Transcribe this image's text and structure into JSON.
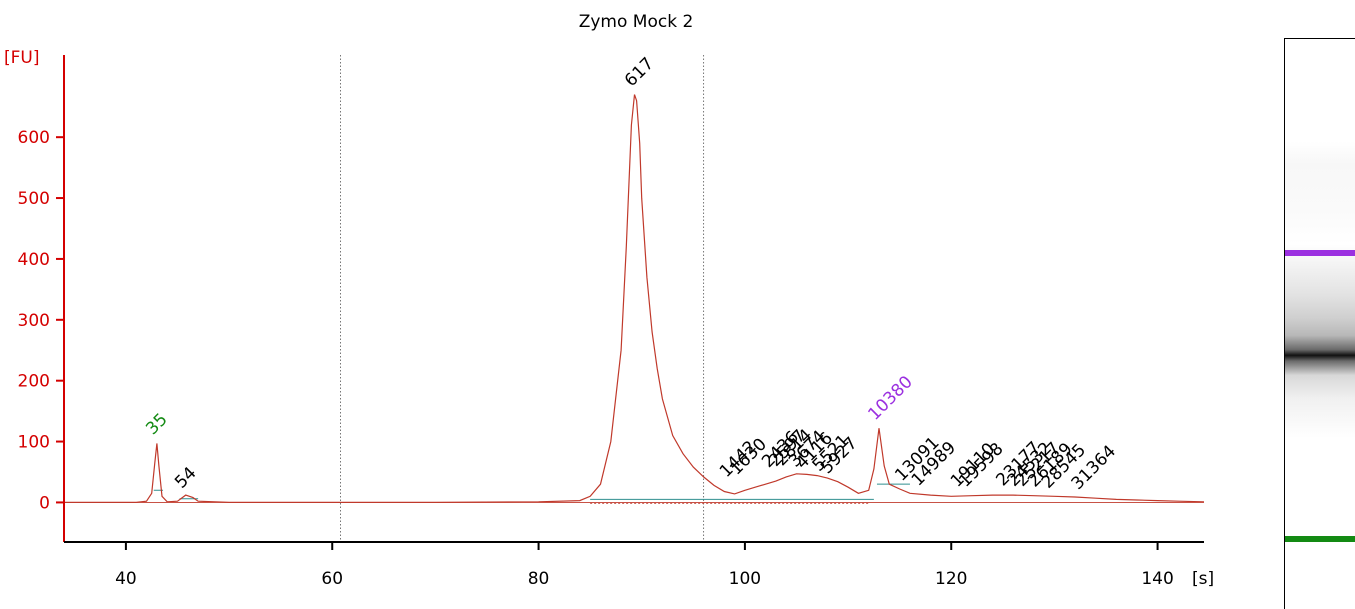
{
  "colors": {
    "axis": "#d40000",
    "trace": "#c0392b",
    "lower_marker": "#138a13",
    "upper_marker": "#9b30e0",
    "baseline": "#2f8f8f",
    "peak_label": "#000000",
    "grid": "#555555"
  },
  "chart_data": {
    "type": "line",
    "title": "Zymo Mock 2",
    "ylabel": "[FU]",
    "xlabel": "[s]",
    "xlim": [
      34,
      144.5
    ],
    "ylim": [
      -65,
      735
    ],
    "x_ticks": [
      40,
      60,
      80,
      100,
      120,
      140
    ],
    "y_ticks": [
      0,
      100,
      200,
      300,
      400,
      500,
      600
    ],
    "vertical_gridlines": [
      60.8,
      96
    ],
    "series": [
      {
        "x": [
          34,
          41,
          42,
          42.5,
          42.8,
          43.0,
          43.2,
          43.5,
          44,
          45,
          45.8,
          46.5,
          47,
          50,
          60,
          70,
          80,
          84,
          85,
          86,
          87,
          88,
          88.5,
          89,
          89.3,
          89.5,
          89.8,
          90,
          90.5,
          91,
          91.5,
          92,
          93,
          94,
          95,
          96,
          97,
          98,
          99,
          100,
          101,
          102,
          103,
          104,
          105,
          106,
          107,
          108,
          109,
          110,
          111,
          112,
          112.5,
          113,
          113.5,
          114,
          115,
          116,
          118,
          120,
          122,
          124,
          126,
          128,
          130,
          132,
          134,
          136,
          138,
          140,
          142,
          144.5
        ],
        "y": [
          0,
          0,
          2,
          15,
          65,
          97,
          60,
          10,
          1,
          2,
          12,
          8,
          2,
          0,
          0,
          0,
          1,
          3,
          10,
          30,
          100,
          250,
          420,
          620,
          670,
          660,
          590,
          500,
          370,
          280,
          220,
          170,
          110,
          80,
          58,
          42,
          28,
          18,
          14,
          20,
          25,
          30,
          35,
          42,
          47,
          46,
          44,
          40,
          34,
          25,
          15,
          20,
          55,
          122,
          60,
          30,
          22,
          15,
          12,
          10,
          11,
          12,
          12,
          11,
          10,
          9,
          7,
          5,
          4,
          3,
          2,
          1
        ]
      }
    ],
    "peak_labels": [
      {
        "label": "35",
        "x": 43.0,
        "y": 100,
        "marker": "lower"
      },
      {
        "label": "54",
        "x": 45.8,
        "y": 12,
        "marker": "none"
      },
      {
        "label": "617",
        "x": 89.4,
        "y": 672,
        "marker": "none"
      },
      {
        "label": "1442",
        "x": 98.6,
        "y": 30,
        "marker": "none"
      },
      {
        "label": "1630",
        "x": 99.6,
        "y": 34,
        "marker": "none"
      },
      {
        "label": "2436",
        "x": 102.7,
        "y": 46,
        "marker": "none"
      },
      {
        "label": "2597",
        "x": 103.4,
        "y": 48,
        "marker": "none"
      },
      {
        "label": "2814",
        "x": 104.0,
        "y": 49,
        "marker": "none"
      },
      {
        "label": "3674",
        "x": 105.3,
        "y": 47,
        "marker": "none"
      },
      {
        "label": "4116",
        "x": 106.0,
        "y": 44,
        "marker": "none"
      },
      {
        "label": "5521",
        "x": 107.6,
        "y": 40,
        "marker": "none"
      },
      {
        "label": "5927",
        "x": 108.4,
        "y": 36,
        "marker": "none"
      },
      {
        "label": "10380",
        "x": 113.0,
        "y": 124,
        "marker": "upper"
      },
      {
        "label": "13091",
        "x": 115.6,
        "y": 24,
        "marker": "none"
      },
      {
        "label": "14989",
        "x": 117.2,
        "y": 16,
        "marker": "none"
      },
      {
        "label": "19110",
        "x": 121.0,
        "y": 14,
        "marker": "none"
      },
      {
        "label": "19598",
        "x": 121.8,
        "y": 14,
        "marker": "none"
      },
      {
        "label": "23177",
        "x": 125.4,
        "y": 16,
        "marker": "none"
      },
      {
        "label": "24532",
        "x": 126.5,
        "y": 15,
        "marker": "none"
      },
      {
        "label": "25217",
        "x": 127.3,
        "y": 15,
        "marker": "none"
      },
      {
        "label": "26189",
        "x": 128.5,
        "y": 14,
        "marker": "none"
      },
      {
        "label": "28545",
        "x": 129.8,
        "y": 12,
        "marker": "none"
      },
      {
        "label": "31364",
        "x": 132.7,
        "y": 10,
        "marker": "none"
      }
    ],
    "gel_lane": {
      "upper_marker_level": 0.375,
      "lower_marker_level": 0.875
    }
  }
}
